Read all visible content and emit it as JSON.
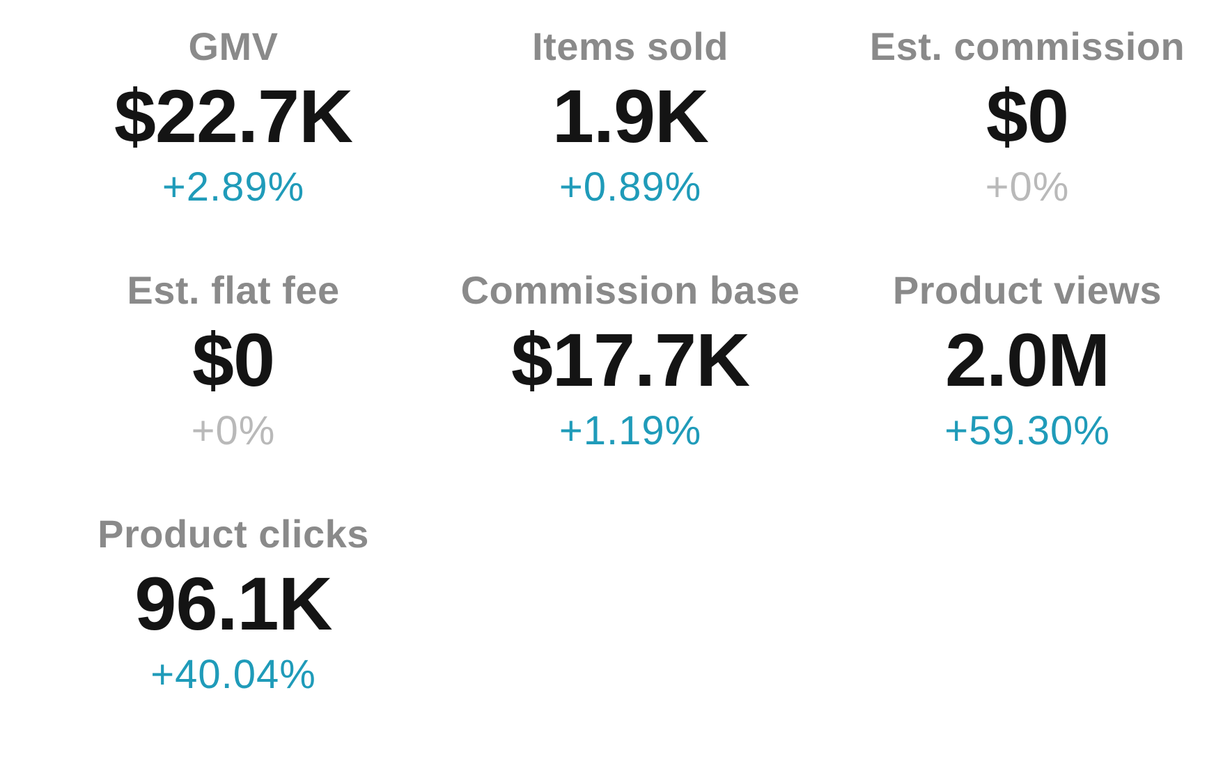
{
  "colors": {
    "background": "#ffffff",
    "label": "#8a8a8a",
    "value": "#141414",
    "delta_positive": "#1f9bb9",
    "delta_neutral": "#b9b9b9"
  },
  "metrics": [
    {
      "label": "GMV",
      "value": "$22.7K",
      "delta": "+2.89%",
      "trend": "positive"
    },
    {
      "label": "Items sold",
      "value": "1.9K",
      "delta": "+0.89%",
      "trend": "positive"
    },
    {
      "label": "Est. commission",
      "value": "$0",
      "delta": "+0%",
      "trend": "neutral"
    },
    {
      "label": "Est. flat fee",
      "value": "$0",
      "delta": "+0%",
      "trend": "neutral"
    },
    {
      "label": "Commission base",
      "value": "$17.7K",
      "delta": "+1.19%",
      "trend": "positive"
    },
    {
      "label": "Product views",
      "value": "2.0M",
      "delta": "+59.30%",
      "trend": "positive"
    },
    {
      "label": "Product clicks",
      "value": "96.1K",
      "delta": "+40.04%",
      "trend": "positive"
    }
  ]
}
